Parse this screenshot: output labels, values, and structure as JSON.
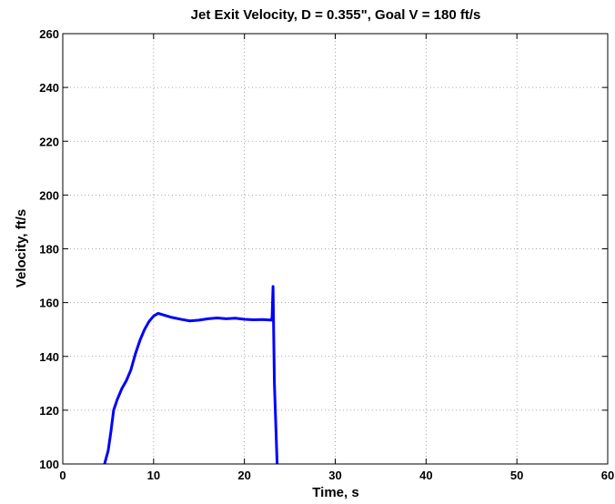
{
  "chart_data": {
    "type": "line",
    "title": "Jet Exit Velocity, D = 0.355\", Goal V = 180 ft/s",
    "xlabel": "Time, s",
    "ylabel": "Velocity, ft/s",
    "xlim": [
      0,
      60
    ],
    "ylim": [
      100,
      260
    ],
    "xticks": [
      0,
      10,
      20,
      30,
      40,
      50,
      60
    ],
    "yticks": [
      100,
      120,
      140,
      160,
      180,
      200,
      220,
      240,
      260
    ],
    "grid": true,
    "series_color": "#0000ff",
    "series": [
      {
        "x": [
          4.6,
          5.0,
          5.3,
          5.6,
          6.0,
          6.5,
          7.0,
          7.5,
          8.0,
          8.5,
          9.0,
          9.5,
          10.0,
          10.5,
          11.0,
          11.5,
          12.0,
          13.0,
          14.0,
          15.0,
          16.0,
          17.0,
          18.0,
          19.0,
          20.0,
          21.0,
          22.0,
          23.0,
          23.05,
          23.15,
          23.3,
          23.6
        ],
        "y": [
          100,
          105,
          112,
          120,
          124,
          128,
          131,
          135,
          141,
          146,
          150,
          153,
          155,
          156,
          155.5,
          155,
          154.5,
          153.8,
          153.2,
          153.5,
          154,
          154.3,
          154,
          154.2,
          153.8,
          153.6,
          153.7,
          153.5,
          155,
          166,
          130,
          100
        ]
      }
    ]
  }
}
